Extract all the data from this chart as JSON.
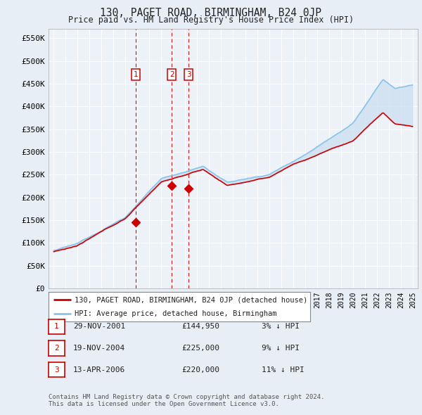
{
  "title": "130, PAGET ROAD, BIRMINGHAM, B24 0JP",
  "subtitle": "Price paid vs. HM Land Registry's House Price Index (HPI)",
  "ylabel_ticks": [
    "£0",
    "£50K",
    "£100K",
    "£150K",
    "£200K",
    "£250K",
    "£300K",
    "£350K",
    "£400K",
    "£450K",
    "£500K",
    "£550K"
  ],
  "ytick_values": [
    0,
    50000,
    100000,
    150000,
    200000,
    250000,
    300000,
    350000,
    400000,
    450000,
    500000,
    550000
  ],
  "ylim": [
    0,
    570000
  ],
  "transaction_prices": [
    144950,
    225000,
    220000
  ],
  "transaction_labels": [
    "1",
    "2",
    "3"
  ],
  "transaction_info": [
    {
      "label": "1",
      "date": "29-NOV-2001",
      "price": "£144,950",
      "hpi": "3% ↓ HPI"
    },
    {
      "label": "2",
      "date": "19-NOV-2004",
      "price": "£225,000",
      "hpi": "9% ↓ HPI"
    },
    {
      "label": "3",
      "date": "13-APR-2006",
      "price": "£220,000",
      "hpi": "11% ↓ HPI"
    }
  ],
  "legend_line1": "130, PAGET ROAD, BIRMINGHAM, B24 0JP (detached house)",
  "legend_line2": "HPI: Average price, detached house, Birmingham",
  "footer": "Contains HM Land Registry data © Crown copyright and database right 2024.\nThis data is licensed under the Open Government Licence v3.0.",
  "bg_color": "#e8eef5",
  "plot_bg": "#edf2f9",
  "grid_color": "#ffffff",
  "hpi_color": "#89c4e8",
  "price_color": "#cc0000",
  "fill_color": "#c8ddf0",
  "vline_color": "#cc0000"
}
